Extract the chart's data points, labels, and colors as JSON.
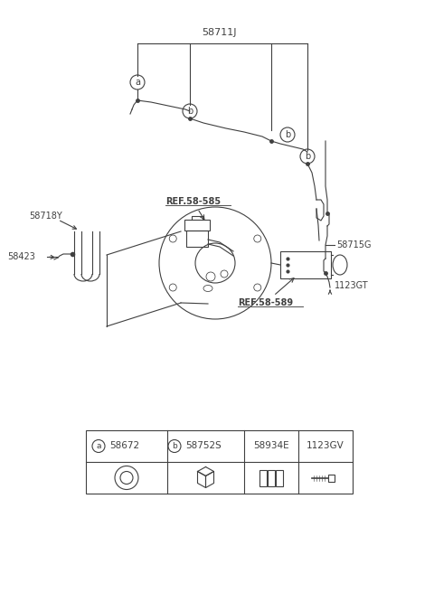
{
  "bg_color": "#ffffff",
  "line_color": "#404040",
  "label_58711J": "58711J",
  "label_58718Y": "58718Y",
  "label_58423": "58423",
  "label_58715G": "58715G",
  "label_ref585": "REF.58-585",
  "label_ref589": "REF.58-589",
  "label_1123GT": "1123GT",
  "parts_labels": [
    "58672",
    "58752S",
    "58934E",
    "1123GV"
  ],
  "parts_codes": [
    "a",
    "b",
    "",
    ""
  ]
}
